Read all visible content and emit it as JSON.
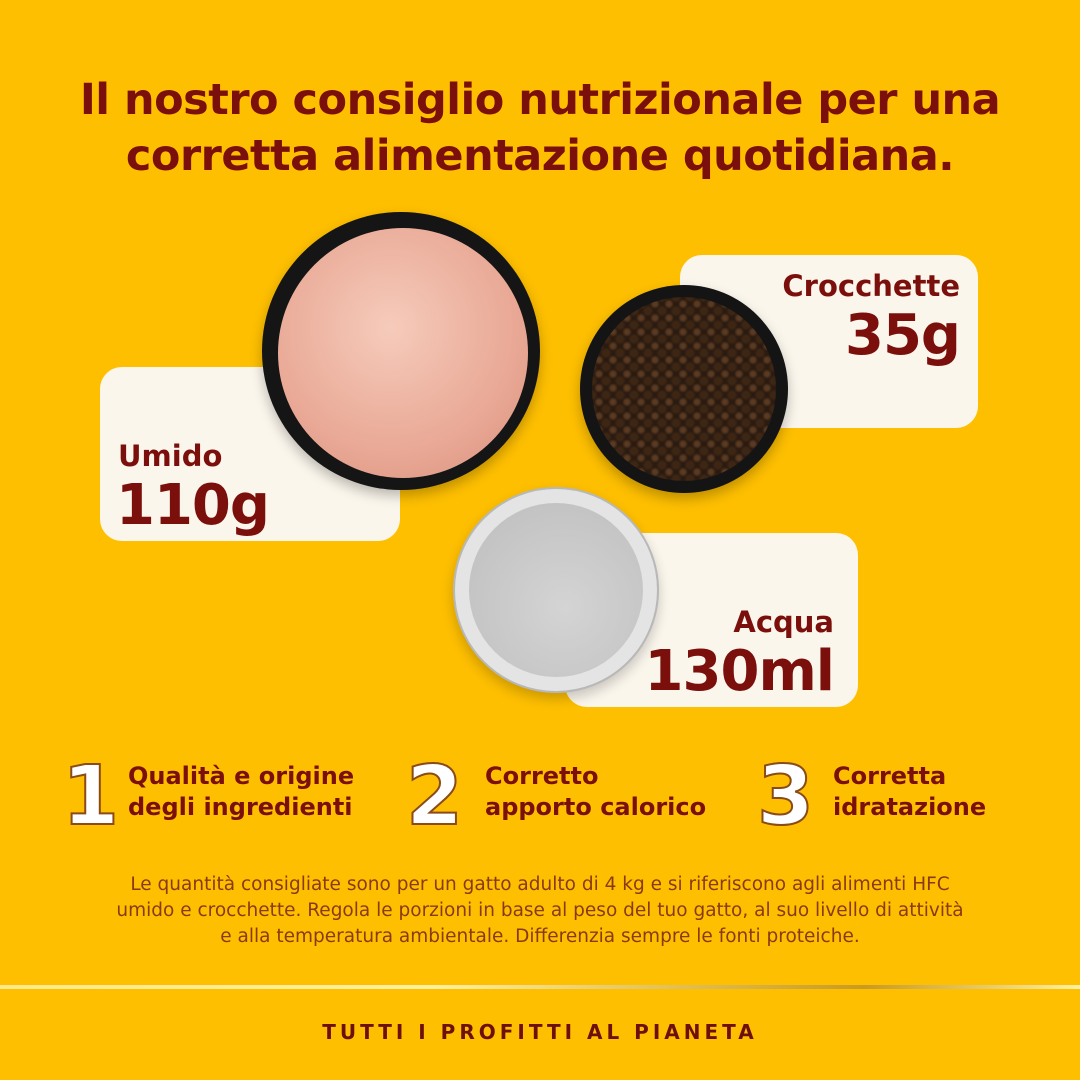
{
  "title": {
    "line1": "Il nostro consiglio nutrizionale per una",
    "line2": "corretta alimentazione quotidiana."
  },
  "portions": [
    {
      "label": "Umido",
      "value": "110g"
    },
    {
      "label": "Crocchette",
      "value": "35g"
    },
    {
      "label": "Acqua",
      "value": "130ml"
    }
  ],
  "features": [
    {
      "number": "1",
      "line1": "Qualità e origine",
      "line2": "degli ingredienti"
    },
    {
      "number": "2",
      "line1": "Corretto",
      "line2": "apporto calorico"
    },
    {
      "number": "3",
      "line1": "Corretta",
      "line2": "idratazione"
    }
  ],
  "note": {
    "line1": "Le quantità consigliate sono per un gatto adulto di 4 kg e si riferiscono agli alimenti HFC",
    "line2": "umido e crocchette. Regola le porzioni in base al peso del tuo gatto, al suo livello di attività",
    "line3": "e alla temperatura ambientale. Differenzia sempre le fonti proteiche."
  },
  "footer": "TUTTI I PROFITTI AL PIANETA",
  "colors": {
    "background": "#FEBF00",
    "text": "#7A0F0C",
    "card": "#FBF6EC"
  }
}
